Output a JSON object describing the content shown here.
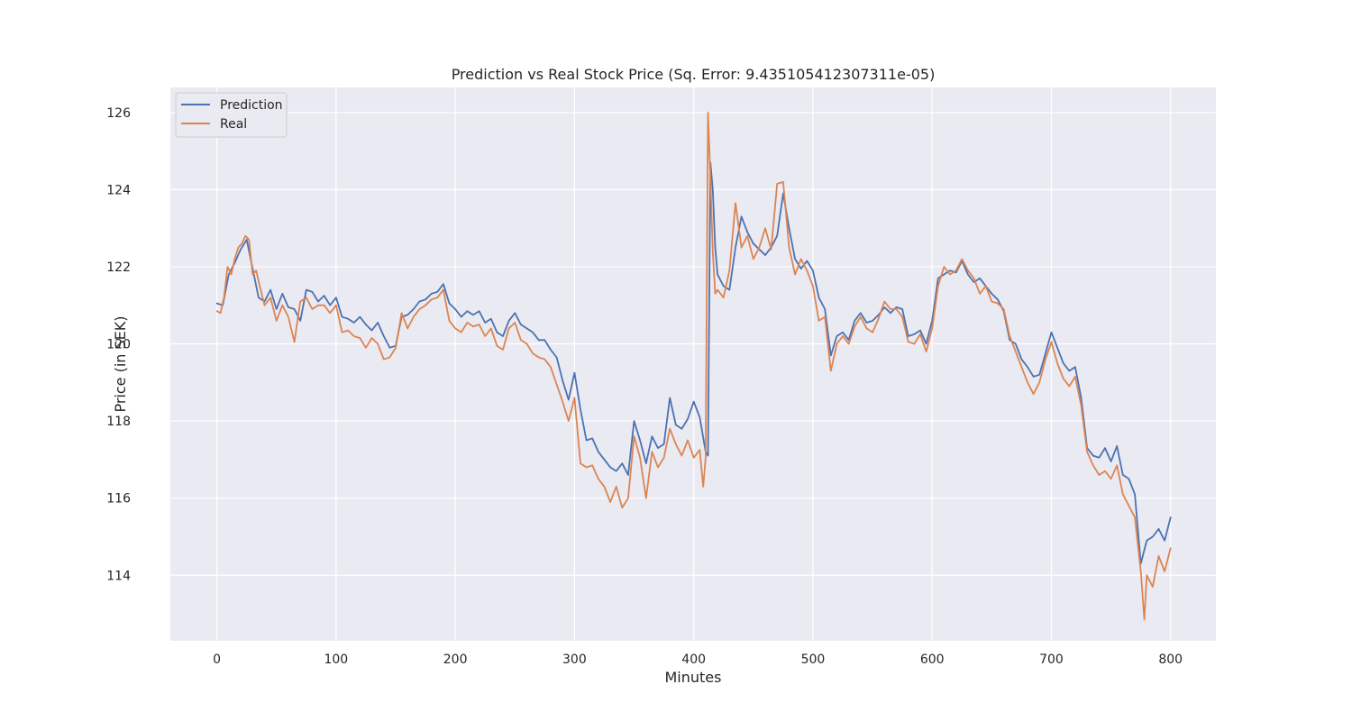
{
  "chart_data": {
    "type": "line",
    "title": "Prediction vs Real Stock Price (Sq. Error: 9.435105412307311e-05)",
    "xlabel": "Minutes",
    "ylabel": "Price (in SEK)",
    "xlim": [
      -39,
      838
    ],
    "ylim": [
      112.3,
      126.65
    ],
    "xticks": [
      0,
      100,
      200,
      300,
      400,
      500,
      600,
      700,
      800
    ],
    "xtick_labels": [
      "0",
      "100",
      "200",
      "300",
      "400",
      "500",
      "600",
      "700",
      "800"
    ],
    "yticks": [
      114,
      116,
      118,
      120,
      122,
      124,
      126
    ],
    "ytick_labels": [
      "114",
      "116",
      "118",
      "120",
      "122",
      "124",
      "126"
    ],
    "grid": true,
    "legend_position": "top-left",
    "background_color": "#eaeaf2",
    "grid_color": "#ffffff",
    "series": [
      {
        "name": "Prediction",
        "color": "#4c72b0",
        "x": [
          0,
          5,
          10,
          15,
          20,
          25,
          30,
          35,
          40,
          45,
          50,
          55,
          60,
          65,
          70,
          75,
          80,
          85,
          90,
          95,
          100,
          105,
          110,
          115,
          120,
          125,
          130,
          135,
          140,
          145,
          150,
          155,
          160,
          165,
          170,
          175,
          180,
          185,
          190,
          195,
          200,
          205,
          210,
          215,
          220,
          225,
          230,
          235,
          240,
          245,
          250,
          255,
          260,
          265,
          270,
          275,
          280,
          285,
          290,
          295,
          300,
          305,
          310,
          315,
          320,
          325,
          330,
          335,
          340,
          345,
          350,
          355,
          360,
          365,
          370,
          375,
          380,
          385,
          390,
          395,
          400,
          405,
          410,
          412,
          414,
          416,
          418,
          420,
          425,
          430,
          435,
          440,
          445,
          450,
          455,
          460,
          465,
          470,
          475,
          480,
          485,
          490,
          495,
          500,
          505,
          510,
          515,
          520,
          525,
          530,
          535,
          540,
          545,
          550,
          555,
          560,
          565,
          570,
          575,
          580,
          585,
          590,
          595,
          600,
          605,
          610,
          615,
          620,
          625,
          630,
          635,
          640,
          645,
          650,
          655,
          660,
          665,
          670,
          675,
          680,
          685,
          690,
          695,
          700,
          705,
          710,
          715,
          720,
          725,
          730,
          735,
          740,
          745,
          750,
          755,
          760,
          765,
          770,
          775,
          780,
          785,
          790,
          795,
          800
        ],
        "values": [
          121.05,
          121.0,
          121.8,
          122.1,
          122.45,
          122.7,
          121.95,
          121.2,
          121.1,
          121.4,
          120.9,
          121.3,
          120.95,
          120.9,
          120.6,
          121.4,
          121.35,
          121.1,
          121.25,
          121.0,
          121.2,
          120.7,
          120.65,
          120.55,
          120.7,
          120.5,
          120.35,
          120.55,
          120.2,
          119.9,
          119.95,
          120.7,
          120.75,
          120.9,
          121.1,
          121.15,
          121.3,
          121.35,
          121.55,
          121.05,
          120.9,
          120.7,
          120.85,
          120.75,
          120.85,
          120.55,
          120.65,
          120.3,
          120.2,
          120.6,
          120.8,
          120.5,
          120.4,
          120.3,
          120.1,
          120.1,
          119.85,
          119.65,
          119.05,
          118.55,
          119.25,
          118.3,
          117.5,
          117.55,
          117.2,
          117.0,
          116.8,
          116.7,
          116.9,
          116.6,
          118.0,
          117.5,
          116.9,
          117.6,
          117.3,
          117.4,
          118.6,
          117.9,
          117.8,
          118.05,
          118.5,
          118.1,
          117.2,
          117.1,
          124.7,
          124.0,
          122.5,
          121.8,
          121.5,
          121.4,
          122.5,
          123.3,
          122.9,
          122.6,
          122.45,
          122.3,
          122.5,
          122.8,
          123.9,
          123.0,
          122.2,
          121.95,
          122.15,
          121.9,
          121.2,
          120.9,
          119.7,
          120.2,
          120.3,
          120.1,
          120.6,
          120.8,
          120.55,
          120.6,
          120.75,
          120.95,
          120.8,
          120.95,
          120.9,
          120.2,
          120.25,
          120.35,
          120.0,
          120.6,
          121.7,
          121.8,
          121.9,
          121.85,
          122.15,
          121.8,
          121.6,
          121.7,
          121.5,
          121.3,
          121.15,
          120.85,
          120.1,
          120.0,
          119.6,
          119.4,
          119.15,
          119.2,
          119.75,
          120.3,
          119.9,
          119.5,
          119.3,
          119.4,
          118.6,
          117.3,
          117.1,
          117.05,
          117.3,
          116.95,
          117.35,
          116.6,
          116.5,
          116.1,
          114.3,
          114.9,
          115.0,
          115.2,
          114.9,
          115.5
        ]
      },
      {
        "name": "Real",
        "color": "#dd8452",
        "x": [
          0,
          3,
          6,
          9,
          12,
          15,
          18,
          21,
          24,
          27,
          30,
          33,
          36,
          40,
          45,
          50,
          55,
          60,
          65,
          70,
          75,
          80,
          85,
          90,
          95,
          100,
          105,
          110,
          115,
          120,
          125,
          130,
          135,
          140,
          145,
          150,
          155,
          160,
          165,
          170,
          175,
          180,
          185,
          190,
          195,
          200,
          205,
          210,
          215,
          220,
          225,
          230,
          235,
          240,
          245,
          250,
          255,
          260,
          265,
          270,
          275,
          280,
          285,
          290,
          295,
          300,
          305,
          310,
          315,
          320,
          325,
          330,
          335,
          340,
          345,
          350,
          355,
          360,
          365,
          370,
          375,
          380,
          385,
          390,
          395,
          400,
          405,
          408,
          410,
          412,
          414,
          416,
          418,
          420,
          425,
          430,
          435,
          440,
          445,
          450,
          455,
          460,
          465,
          470,
          475,
          480,
          485,
          490,
          495,
          500,
          505,
          510,
          515,
          520,
          525,
          530,
          535,
          540,
          545,
          550,
          555,
          560,
          565,
          570,
          575,
          580,
          585,
          590,
          595,
          600,
          605,
          610,
          615,
          620,
          625,
          630,
          635,
          640,
          645,
          650,
          655,
          660,
          665,
          670,
          675,
          680,
          685,
          690,
          695,
          700,
          705,
          710,
          715,
          720,
          725,
          730,
          735,
          740,
          745,
          750,
          755,
          760,
          765,
          770,
          775,
          778,
          780,
          785,
          790,
          795,
          800
        ],
        "values": [
          120.85,
          120.8,
          121.2,
          122.0,
          121.8,
          122.2,
          122.5,
          122.6,
          122.8,
          122.7,
          121.8,
          121.9,
          121.5,
          121.0,
          121.2,
          120.6,
          121.0,
          120.7,
          120.05,
          121.1,
          121.2,
          120.9,
          121.0,
          121.0,
          120.8,
          121.0,
          120.3,
          120.35,
          120.2,
          120.15,
          119.9,
          120.15,
          120.0,
          119.6,
          119.65,
          119.9,
          120.8,
          120.4,
          120.7,
          120.9,
          121.0,
          121.15,
          121.2,
          121.4,
          120.6,
          120.4,
          120.3,
          120.55,
          120.45,
          120.5,
          120.2,
          120.4,
          119.95,
          119.85,
          120.4,
          120.55,
          120.1,
          120.0,
          119.75,
          119.65,
          119.6,
          119.4,
          118.95,
          118.5,
          118.0,
          118.6,
          116.9,
          116.8,
          116.85,
          116.5,
          116.3,
          115.9,
          116.3,
          115.75,
          116.0,
          117.6,
          117.05,
          116.0,
          117.2,
          116.8,
          117.05,
          117.8,
          117.4,
          117.1,
          117.5,
          117.05,
          117.25,
          116.3,
          117.05,
          126.0,
          124.3,
          122.4,
          121.3,
          121.4,
          121.2,
          121.9,
          123.65,
          122.5,
          122.8,
          122.2,
          122.5,
          123.0,
          122.45,
          124.15,
          124.2,
          122.5,
          121.8,
          122.2,
          121.9,
          121.5,
          120.6,
          120.7,
          119.3,
          120.0,
          120.2,
          120.0,
          120.45,
          120.7,
          120.4,
          120.3,
          120.65,
          121.1,
          120.9,
          120.9,
          120.7,
          120.05,
          120.0,
          120.25,
          119.8,
          120.4,
          121.5,
          122.0,
          121.8,
          121.9,
          122.2,
          121.9,
          121.7,
          121.3,
          121.5,
          121.1,
          121.05,
          120.9,
          120.2,
          119.8,
          119.4,
          119.0,
          118.7,
          119.0,
          119.6,
          120.05,
          119.5,
          119.1,
          118.9,
          119.15,
          118.4,
          117.2,
          116.85,
          116.6,
          116.7,
          116.5,
          116.85,
          116.1,
          115.8,
          115.5,
          114.1,
          112.85,
          114.0,
          113.7,
          114.5,
          114.1,
          114.7
        ]
      }
    ]
  }
}
